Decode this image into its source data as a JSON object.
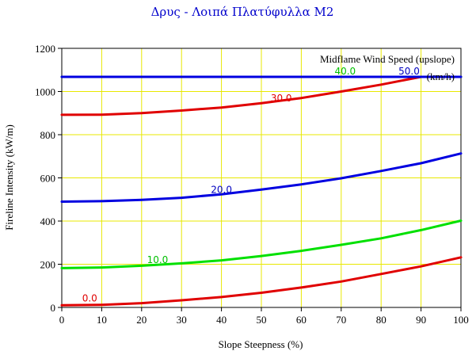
{
  "chart_data": {
    "type": "line",
    "title": "Δρυς - Λοιπά Πλατύφυλλα M2",
    "xlabel": "Slope Steepness (%)",
    "ylabel": "Fireline Intensity (kW/m)",
    "xlim": [
      0,
      100
    ],
    "ylim": [
      0,
      1200
    ],
    "xticks": [
      0,
      10,
      20,
      30,
      40,
      50,
      60,
      70,
      80,
      90,
      100
    ],
    "yticks": [
      0,
      200,
      400,
      600,
      800,
      1000,
      1200
    ],
    "grid": true,
    "legend": {
      "title": "Midflame Wind Speed (upslope)",
      "units": "(km/h)",
      "position": "top-right"
    },
    "series": [
      {
        "name": "0.0",
        "color": "#e00000",
        "x": [
          0,
          10,
          20,
          30,
          40,
          50,
          60,
          70,
          80,
          90,
          100
        ],
        "y": [
          10,
          12,
          20,
          33,
          48,
          68,
          92,
          120,
          155,
          190,
          232
        ]
      },
      {
        "name": "10.0",
        "color": "#00e000",
        "x": [
          0,
          10,
          20,
          30,
          40,
          50,
          60,
          70,
          80,
          90,
          100
        ],
        "y": [
          182,
          185,
          193,
          204,
          218,
          238,
          262,
          290,
          320,
          358,
          402
        ]
      },
      {
        "name": "20.0",
        "color": "#0000e0",
        "x": [
          0,
          10,
          20,
          30,
          40,
          50,
          60,
          70,
          80,
          90,
          100
        ],
        "y": [
          490,
          492,
          498,
          508,
          524,
          546,
          570,
          598,
          632,
          668,
          713
        ]
      },
      {
        "name": "30.0",
        "color": "#e00000",
        "x": [
          0,
          10,
          20,
          30,
          40,
          50,
          60,
          70,
          80,
          90,
          100
        ],
        "y": [
          892,
          893,
          900,
          912,
          926,
          946,
          970,
          1000,
          1032,
          1068,
          1068
        ]
      },
      {
        "name": "40.0",
        "color": "#00e000",
        "x": [
          0,
          10,
          20,
          30,
          40,
          50,
          60,
          70,
          80,
          90,
          100
        ],
        "y": [
          1068,
          1068,
          1068,
          1068,
          1068,
          1068,
          1068,
          1068,
          1068,
          1068,
          1068
        ]
      },
      {
        "name": "50.0",
        "color": "#0000e0",
        "x": [
          0,
          10,
          20,
          30,
          40,
          50,
          60,
          70,
          80,
          90,
          100
        ],
        "y": [
          1068,
          1068,
          1068,
          1068,
          1068,
          1068,
          1068,
          1068,
          1068,
          1068,
          1068
        ]
      }
    ],
    "series_labels": [
      {
        "text": "0.0",
        "x": 7,
        "y": 28,
        "color": "#e00000"
      },
      {
        "text": "10.0",
        "x": 24,
        "y": 205,
        "color": "#00c000"
      },
      {
        "text": "20.0",
        "x": 40,
        "y": 530,
        "color": "#0000c0"
      },
      {
        "text": "30.0",
        "x": 55,
        "y": 955,
        "color": "#e00000"
      },
      {
        "text": "40.0",
        "x": 71,
        "y": 1078,
        "color": "#00c000"
      },
      {
        "text": "50.0",
        "x": 87,
        "y": 1078,
        "color": "#0000c0"
      }
    ]
  }
}
